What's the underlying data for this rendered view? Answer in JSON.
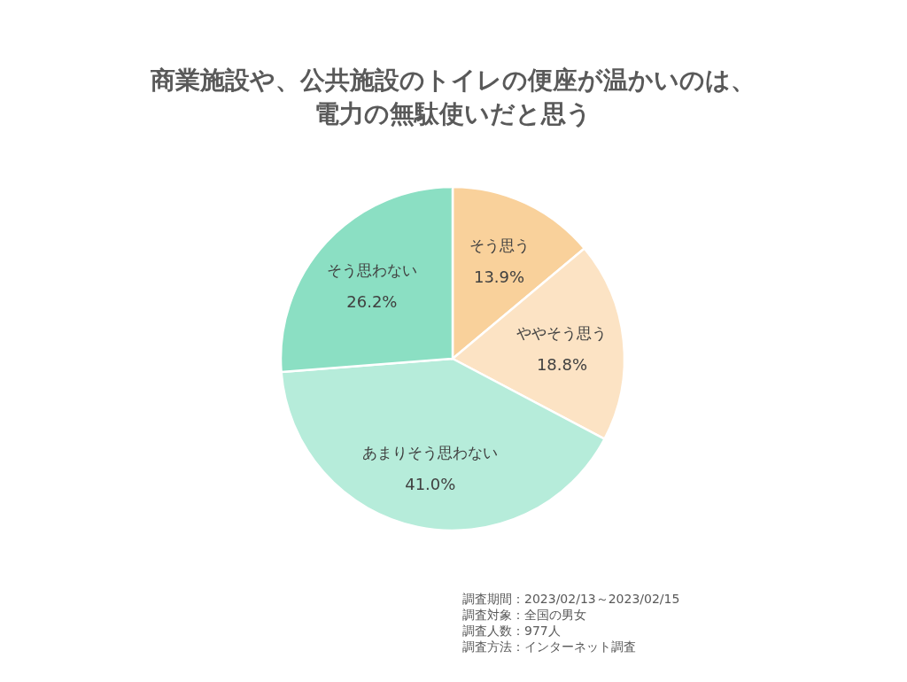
{
  "chart_data": {
    "type": "pie",
    "title": "商業施設や、公共施設のトイレの便座が温かいのは、電力の無駄使いだと思う",
    "categories": [
      "そう思う",
      "ややそう思う",
      "あまりそう思わない",
      "そう思わない"
    ],
    "values": [
      13.9,
      18.8,
      41.0,
      26.2
    ],
    "value_labels": [
      "13.9%",
      "18.8%",
      "41.0%",
      "26.2%"
    ],
    "colors": [
      "#f9d19b",
      "#fce3c4",
      "#b6ecda",
      "#8bdfc3"
    ],
    "legend": false,
    "annotations": [
      "調査期間：2023/02/13～2023/02/15",
      "調査対象：全国の男女",
      "調査人数：977人",
      "調査方法：インターネット調査"
    ]
  }
}
